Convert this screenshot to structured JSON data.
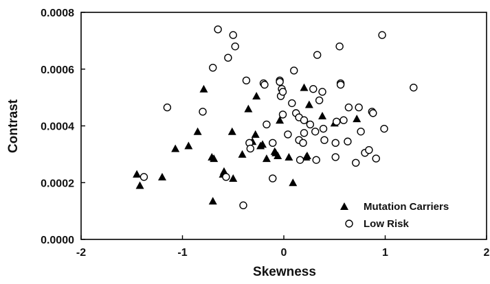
{
  "chart_data": {
    "type": "scatter",
    "xlabel": "Skewness",
    "ylabel": "Contrast",
    "xlim": [
      -2,
      2
    ],
    "ylim": [
      0,
      0.0008
    ],
    "x_ticks": [
      -2,
      -1,
      0,
      1,
      2
    ],
    "y_ticks": [
      0.0,
      0.0002,
      0.0004,
      0.0006,
      0.0008
    ],
    "x_tick_labels": [
      "-2",
      "-1",
      "0",
      "1",
      "2"
    ],
    "y_tick_labels": [
      "0.0000",
      "0.0002",
      "0.0004",
      "0.0006",
      "0.0008"
    ],
    "grid": false,
    "legend": {
      "position": "bottom-right",
      "entries": [
        "Mutation Carriers",
        "Low Risk"
      ]
    },
    "series": [
      {
        "name": "Mutation Carriers",
        "marker": "filled-triangle",
        "color": "#000000",
        "points": [
          [
            -1.45,
            0.00023
          ],
          [
            -1.42,
            0.00019
          ],
          [
            -1.2,
            0.00022
          ],
          [
            -1.07,
            0.00032
          ],
          [
            -0.94,
            0.00033
          ],
          [
            -0.85,
            0.00038
          ],
          [
            -0.79,
            0.00053
          ],
          [
            -0.71,
            0.00029
          ],
          [
            -0.69,
            0.000285
          ],
          [
            -0.7,
            0.000135
          ],
          [
            -0.59,
            0.00024
          ],
          [
            -0.6,
            0.00023
          ],
          [
            -0.51,
            0.00038
          ],
          [
            -0.5,
            0.000215
          ],
          [
            -0.41,
            0.0003
          ],
          [
            -0.35,
            0.00046
          ],
          [
            -0.31,
            0.000345
          ],
          [
            -0.28,
            0.00037
          ],
          [
            -0.27,
            0.000505
          ],
          [
            -0.23,
            0.00033
          ],
          [
            -0.21,
            0.000335
          ],
          [
            -0.17,
            0.000285
          ],
          [
            -0.09,
            0.00031
          ],
          [
            -0.08,
            0.000305
          ],
          [
            -0.06,
            0.000295
          ],
          [
            -0.04,
            0.00042
          ],
          [
            0.05,
            0.00029
          ],
          [
            0.09,
            0.0002
          ],
          [
            0.2,
            0.000535
          ],
          [
            0.22,
            0.00029
          ],
          [
            0.23,
            0.000295
          ],
          [
            0.25,
            0.000475
          ],
          [
            0.38,
            0.000435
          ],
          [
            0.5,
            0.00041
          ],
          [
            0.72,
            0.000425
          ]
        ]
      },
      {
        "name": "Low Risk",
        "marker": "open-circle",
        "color": "#000000",
        "points": [
          [
            -1.38,
            0.00022
          ],
          [
            -1.15,
            0.000465
          ],
          [
            -0.8,
            0.00045
          ],
          [
            -0.7,
            0.000605
          ],
          [
            -0.65,
            0.00074
          ],
          [
            -0.57,
            0.00022
          ],
          [
            -0.55,
            0.00064
          ],
          [
            -0.5,
            0.00072
          ],
          [
            -0.48,
            0.00068
          ],
          [
            -0.4,
            0.00012
          ],
          [
            -0.37,
            0.00056
          ],
          [
            -0.34,
            0.00034
          ],
          [
            -0.33,
            0.00032
          ],
          [
            -0.2,
            0.00055
          ],
          [
            -0.19,
            0.000545
          ],
          [
            -0.17,
            0.000405
          ],
          [
            -0.11,
            0.000215
          ],
          [
            -0.11,
            0.00034
          ],
          [
            -0.04,
            0.00056
          ],
          [
            -0.04,
            0.000555
          ],
          [
            -0.02,
            0.00053
          ],
          [
            -0.03,
            0.000505
          ],
          [
            -0.01,
            0.00052
          ],
          [
            -0.01,
            0.00044
          ],
          [
            0.04,
            0.00037
          ],
          [
            0.08,
            0.00048
          ],
          [
            0.1,
            0.000595
          ],
          [
            0.12,
            0.000445
          ],
          [
            0.15,
            0.00043
          ],
          [
            0.15,
            0.00035
          ],
          [
            0.16,
            0.00028
          ],
          [
            0.19,
            0.00034
          ],
          [
            0.2,
            0.00042
          ],
          [
            0.2,
            0.000375
          ],
          [
            0.26,
            0.000405
          ],
          [
            0.29,
            0.00053
          ],
          [
            0.31,
            0.00038
          ],
          [
            0.32,
            0.00028
          ],
          [
            0.33,
            0.00065
          ],
          [
            0.35,
            0.00049
          ],
          [
            0.38,
            0.00052
          ],
          [
            0.39,
            0.00039
          ],
          [
            0.4,
            0.00035
          ],
          [
            0.51,
            0.00034
          ],
          [
            0.51,
            0.00029
          ],
          [
            0.52,
            0.000415
          ],
          [
            0.55,
            0.00068
          ],
          [
            0.56,
            0.00055
          ],
          [
            0.56,
            0.000545
          ],
          [
            0.59,
            0.00042
          ],
          [
            0.63,
            0.000345
          ],
          [
            0.64,
            0.000465
          ],
          [
            0.71,
            0.00027
          ],
          [
            0.74,
            0.000465
          ],
          [
            0.76,
            0.00038
          ],
          [
            0.8,
            0.000305
          ],
          [
            0.84,
            0.000315
          ],
          [
            0.87,
            0.00045
          ],
          [
            0.88,
            0.000445
          ],
          [
            0.91,
            0.000285
          ],
          [
            0.97,
            0.00072
          ],
          [
            0.99,
            0.00039
          ],
          [
            1.28,
            0.000535
          ]
        ]
      }
    ]
  }
}
